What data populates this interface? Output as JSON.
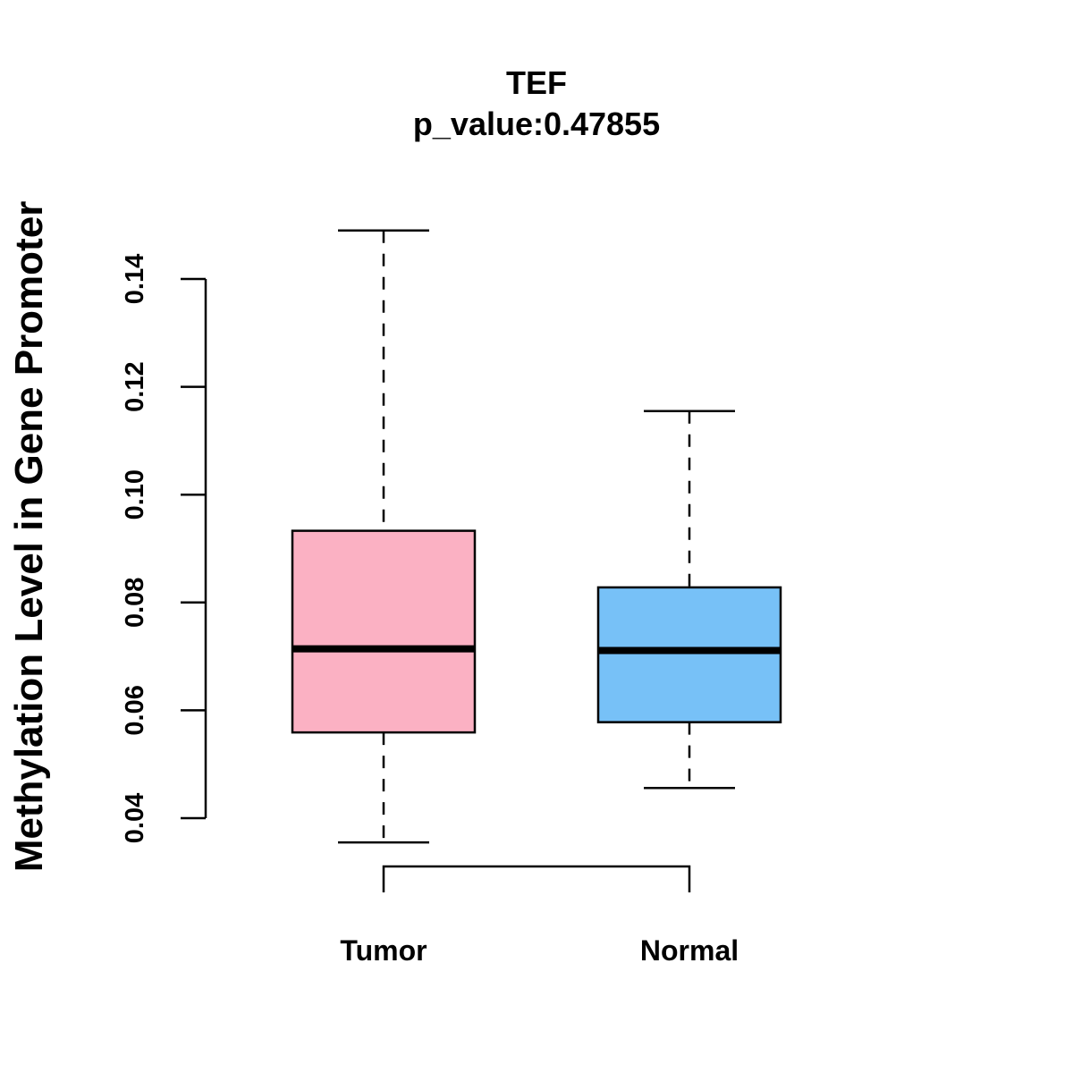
{
  "chart_data": {
    "type": "boxplot",
    "title": "TEF",
    "subtitle": "p_value:0.47855",
    "xlabel": "",
    "ylabel": "Methylation Level in Gene Promoter",
    "ylim": [
      0.04,
      0.14
    ],
    "yticks": [
      0.04,
      0.06,
      0.08,
      0.1,
      0.12,
      0.14
    ],
    "ytick_labels": [
      "0.04",
      "0.06",
      "0.08",
      "0.10",
      "0.12",
      "0.14"
    ],
    "grid": false,
    "categories": [
      "Tumor",
      "Normal"
    ],
    "series": [
      {
        "name": "Tumor",
        "whisker_low": 0.0355,
        "q1": 0.0559,
        "median": 0.0714,
        "q3": 0.0933,
        "whisker_high": 0.149,
        "color": "#FBB1C3"
      },
      {
        "name": "Normal",
        "whisker_low": 0.0456,
        "q1": 0.0578,
        "median": 0.0711,
        "q3": 0.0828,
        "whisker_high": 0.1155,
        "color": "#77C1F7"
      }
    ],
    "comparison_bracket": {
      "from": "Tumor",
      "to": "Normal"
    }
  }
}
